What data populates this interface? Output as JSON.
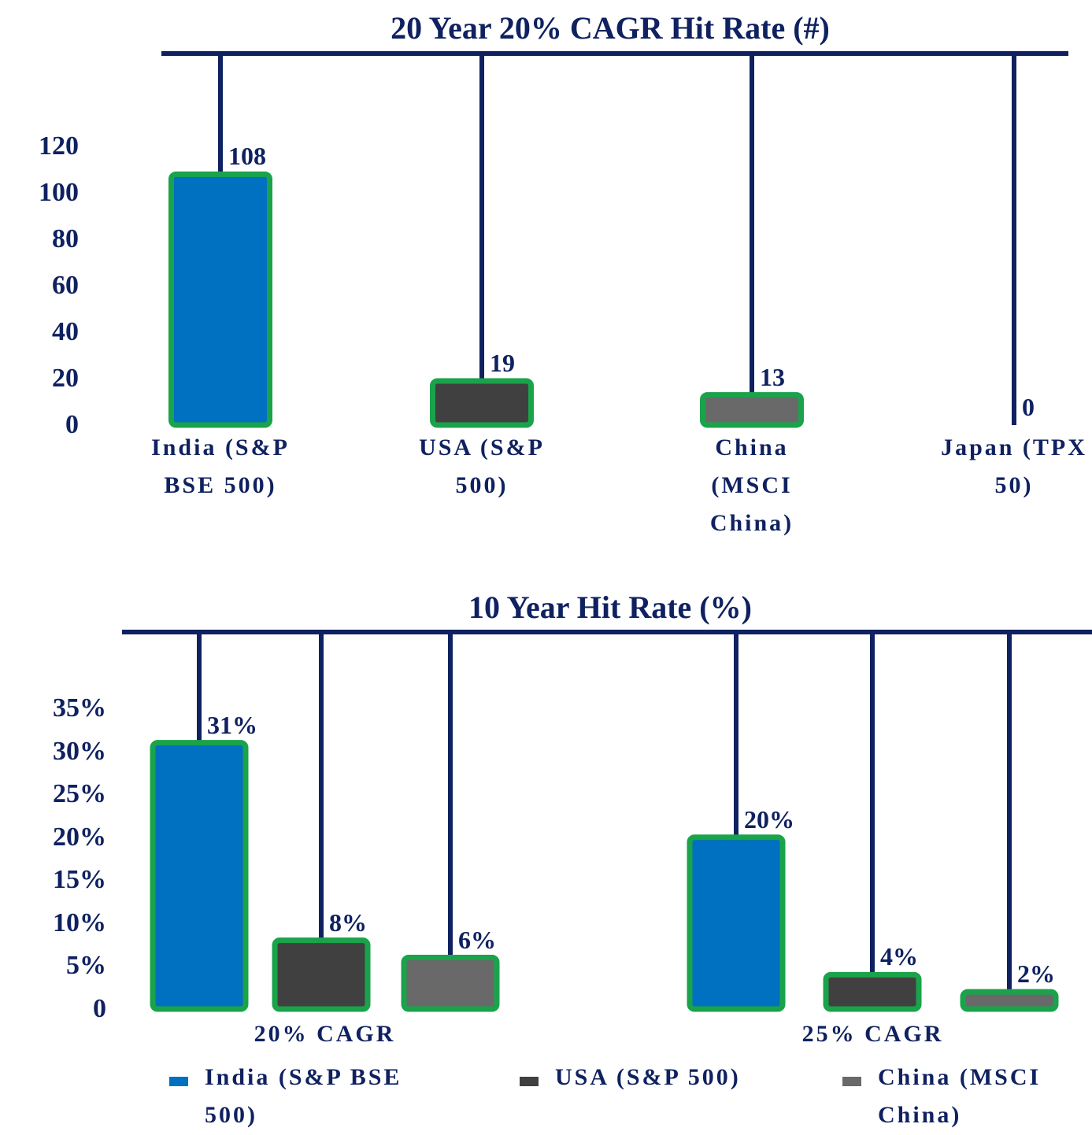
{
  "chart_data": [
    {
      "type": "bar",
      "title": "20 Year 20% CAGR Hit Rate (#)",
      "categories": [
        "India (S&P BSE 500)",
        "USA (S&P 500)",
        "China (MSCI China)",
        "Japan (TPX 50)"
      ],
      "values": [
        108,
        19,
        13,
        0
      ],
      "colors": [
        "#0070c0",
        "#404040",
        "#696969",
        "#696969"
      ],
      "ylim": [
        0,
        120
      ],
      "yticks": [
        0,
        20,
        40,
        60,
        80,
        100,
        120
      ]
    },
    {
      "type": "bar",
      "title": "10 Year Hit Rate (%)",
      "categories": [
        "20% CAGR",
        "25% CAGR"
      ],
      "series": [
        {
          "name": "India (S&P BSE 500)",
          "color": "#0070c0",
          "values": [
            31,
            20
          ],
          "value_labels": [
            "31%",
            "20%"
          ]
        },
        {
          "name": "USA (S&P 500)",
          "color": "#404040",
          "values": [
            8,
            4
          ],
          "value_labels": [
            "8%",
            "4%"
          ]
        },
        {
          "name": "China (MSCI China)",
          "color": "#696969",
          "values": [
            6,
            2
          ],
          "value_labels": [
            "6%",
            "2%"
          ]
        }
      ],
      "ylim": [
        0,
        35
      ],
      "yticks": [
        0,
        {
          "value": 5,
          "label": "5%"
        },
        {
          "value": 10,
          "label": "10%"
        },
        {
          "value": 15,
          "label": "15%"
        },
        {
          "value": 20,
          "label": "20%"
        },
        {
          "value": 25,
          "label": "25%"
        },
        {
          "value": 30,
          "label": "30%"
        },
        {
          "value": 35,
          "label": "35%"
        }
      ],
      "legend": "bottom"
    }
  ]
}
